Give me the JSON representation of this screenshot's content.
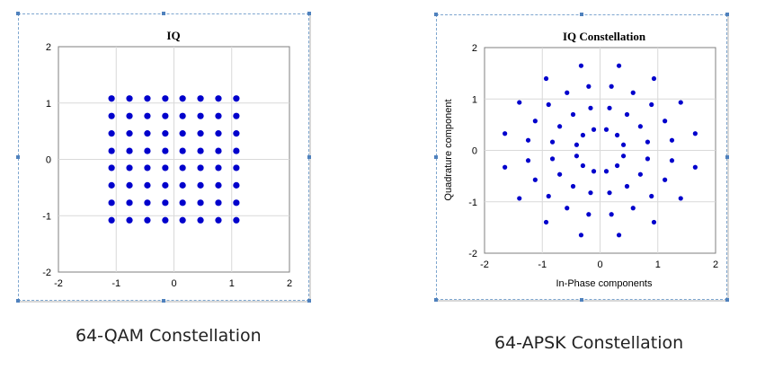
{
  "colors": {
    "marker": "#0000cc",
    "grid": "#d9d9d9",
    "axis": "#7f7f7f"
  },
  "captions": {
    "left": "64-QAM  Constellation",
    "right": "64-APSK Constellation"
  },
  "chart_data": [
    {
      "type": "scatter",
      "title": "IQ",
      "xlabel": "",
      "ylabel": "",
      "xlim": [
        -2,
        2
      ],
      "ylim": [
        -2,
        2
      ],
      "xticks": [
        -2,
        -1,
        0,
        1,
        2
      ],
      "yticks": [
        -2,
        -1,
        0,
        1,
        2
      ],
      "grid": true,
      "levels": [
        -1.08,
        -0.77,
        -0.46,
        -0.15,
        0.15,
        0.46,
        0.77,
        1.08
      ]
    },
    {
      "type": "scatter",
      "title": "IQ Constellation",
      "xlabel": "In-Phase components",
      "ylabel": "Quadrature component",
      "xlim": [
        -2,
        2
      ],
      "ylim": [
        -2,
        2
      ],
      "xticks": [
        -2,
        -1,
        0,
        1,
        2
      ],
      "yticks": [
        -2,
        -1,
        0,
        1,
        2
      ],
      "grid": true,
      "rings": [
        {
          "radius": 0.42,
          "points": 12,
          "phase_deg": 15
        },
        {
          "radius": 0.84,
          "points": 16,
          "phase_deg": 11.25
        },
        {
          "radius": 1.26,
          "points": 20,
          "phase_deg": 9
        },
        {
          "radius": 1.68,
          "points": 16,
          "phase_deg": 11.25
        }
      ]
    }
  ]
}
